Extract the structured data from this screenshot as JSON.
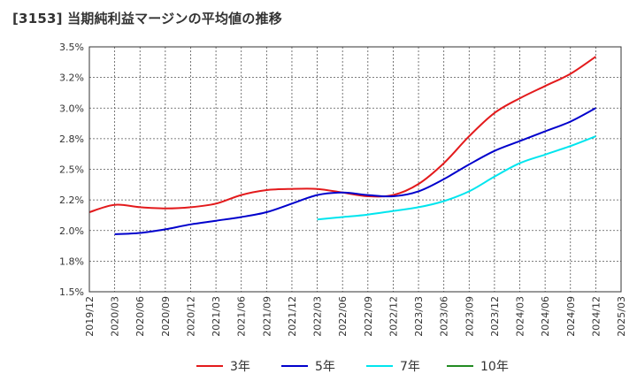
{
  "title": "[3153]  当期純利益マージンの平均値の推移",
  "chart_data": {
    "type": "line",
    "title": "[3153]  当期純利益マージンの平均値の推移",
    "xlabel": "",
    "ylabel": "",
    "ylim": [
      1.5,
      3.5
    ],
    "y_ticks": [
      "1.5%",
      "1.8%",
      "2.0%",
      "2.2%",
      "2.5%",
      "2.8%",
      "3.0%",
      "3.2%",
      "3.5%"
    ],
    "y_tick_values": [
      1.5,
      1.75,
      2.0,
      2.25,
      2.5,
      2.75,
      3.0,
      3.25,
      3.5
    ],
    "x_ticks": [
      "2019/12",
      "2020/03",
      "2020/06",
      "2020/09",
      "2020/12",
      "2021/03",
      "2021/06",
      "2021/09",
      "2021/12",
      "2022/03",
      "2022/06",
      "2022/09",
      "2022/12",
      "2023/03",
      "2023/06",
      "2023/09",
      "2023/12",
      "2024/03",
      "2024/06",
      "2024/09",
      "2024/12",
      "2025/03"
    ],
    "grid": true,
    "legend_position": "bottom",
    "colors": {
      "3年": "#e31a1c",
      "5年": "#0000cc",
      "7年": "#00e5ee",
      "10年": "#228b22"
    },
    "series": [
      {
        "name": "3年",
        "color": "#e31a1c",
        "points": [
          [
            "2019/12",
            2.15
          ],
          [
            "2020/03",
            2.21
          ],
          [
            "2020/06",
            2.19
          ],
          [
            "2020/09",
            2.18
          ],
          [
            "2020/12",
            2.19
          ],
          [
            "2021/03",
            2.22
          ],
          [
            "2021/06",
            2.29
          ],
          [
            "2021/09",
            2.33
          ],
          [
            "2021/12",
            2.34
          ],
          [
            "2022/03",
            2.34
          ],
          [
            "2022/06",
            2.31
          ],
          [
            "2022/09",
            2.28
          ],
          [
            "2022/12",
            2.29
          ],
          [
            "2023/03",
            2.38
          ],
          [
            "2023/06",
            2.55
          ],
          [
            "2023/09",
            2.77
          ],
          [
            "2023/12",
            2.96
          ],
          [
            "2024/03",
            3.08
          ],
          [
            "2024/06",
            3.18
          ],
          [
            "2024/09",
            3.28
          ],
          [
            "2024/12",
            3.42
          ]
        ]
      },
      {
        "name": "5年",
        "color": "#0000cc",
        "points": [
          [
            "2020/03",
            1.97
          ],
          [
            "2020/06",
            1.98
          ],
          [
            "2020/09",
            2.01
          ],
          [
            "2020/12",
            2.05
          ],
          [
            "2021/03",
            2.08
          ],
          [
            "2021/06",
            2.11
          ],
          [
            "2021/09",
            2.15
          ],
          [
            "2021/12",
            2.22
          ],
          [
            "2022/03",
            2.29
          ],
          [
            "2022/06",
            2.31
          ],
          [
            "2022/09",
            2.29
          ],
          [
            "2022/12",
            2.28
          ],
          [
            "2023/03",
            2.32
          ],
          [
            "2023/06",
            2.42
          ],
          [
            "2023/09",
            2.54
          ],
          [
            "2023/12",
            2.65
          ],
          [
            "2024/03",
            2.73
          ],
          [
            "2024/06",
            2.81
          ],
          [
            "2024/09",
            2.89
          ],
          [
            "2024/12",
            3.0
          ]
        ]
      },
      {
        "name": "7年",
        "color": "#00e5ee",
        "points": [
          [
            "2022/03",
            2.09
          ],
          [
            "2022/06",
            2.11
          ],
          [
            "2022/09",
            2.13
          ],
          [
            "2022/12",
            2.16
          ],
          [
            "2023/03",
            2.19
          ],
          [
            "2023/06",
            2.24
          ],
          [
            "2023/09",
            2.32
          ],
          [
            "2023/12",
            2.44
          ],
          [
            "2024/03",
            2.55
          ],
          [
            "2024/06",
            2.62
          ],
          [
            "2024/09",
            2.69
          ],
          [
            "2024/12",
            2.77
          ]
        ]
      },
      {
        "name": "10年",
        "color": "#228b22",
        "points": []
      }
    ]
  }
}
